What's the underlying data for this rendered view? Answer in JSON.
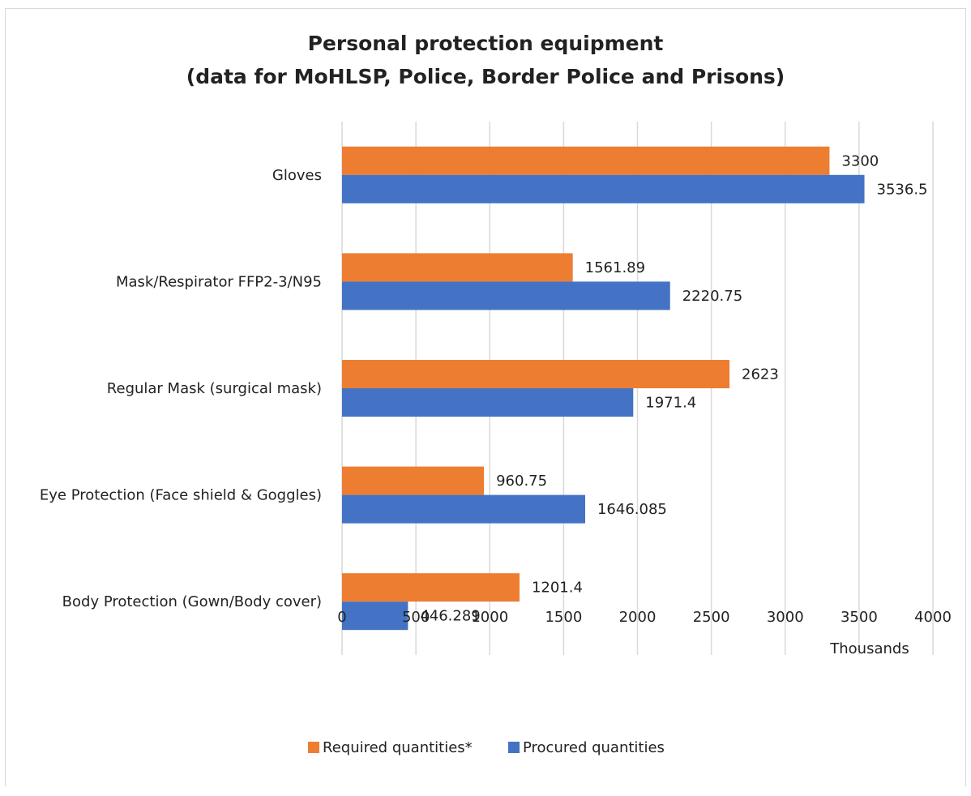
{
  "chart_data": {
    "type": "bar",
    "orientation": "horizontal",
    "title": "Personal protection equipment",
    "subtitle": "(data for MoHLSP, Police, Border Police and Prisons)",
    "xlabel": "Thousands",
    "ylabel": "",
    "xlim": [
      0,
      4000
    ],
    "x_ticks": [
      "0",
      "500",
      "1000",
      "1500",
      "2000",
      "2500",
      "3000",
      "3500",
      "4000"
    ],
    "grid": true,
    "legend_position": "bottom",
    "categories": [
      "Gloves",
      "Mask/Respirator FFP2-3/N95",
      "Regular Mask (surgical mask)",
      "Eye Protection (Face shield & Goggles)",
      "Body Protection (Gown/Body cover)"
    ],
    "series": [
      {
        "name": "Required quantities*",
        "color": "#ED7D31",
        "values": [
          3300,
          1561.89,
          2623,
          960.75,
          1201.4
        ],
        "labels": [
          "3300",
          "1561.89",
          "2623",
          "960.75",
          "1201.4"
        ]
      },
      {
        "name": "Procured quantities",
        "color": "#4472C4",
        "values": [
          3536.5,
          2220.75,
          1971.4,
          1646.085,
          446.289
        ],
        "labels": [
          "3536.5",
          "2220.75",
          "1971.4",
          "1646.085",
          "446.289"
        ]
      }
    ]
  }
}
